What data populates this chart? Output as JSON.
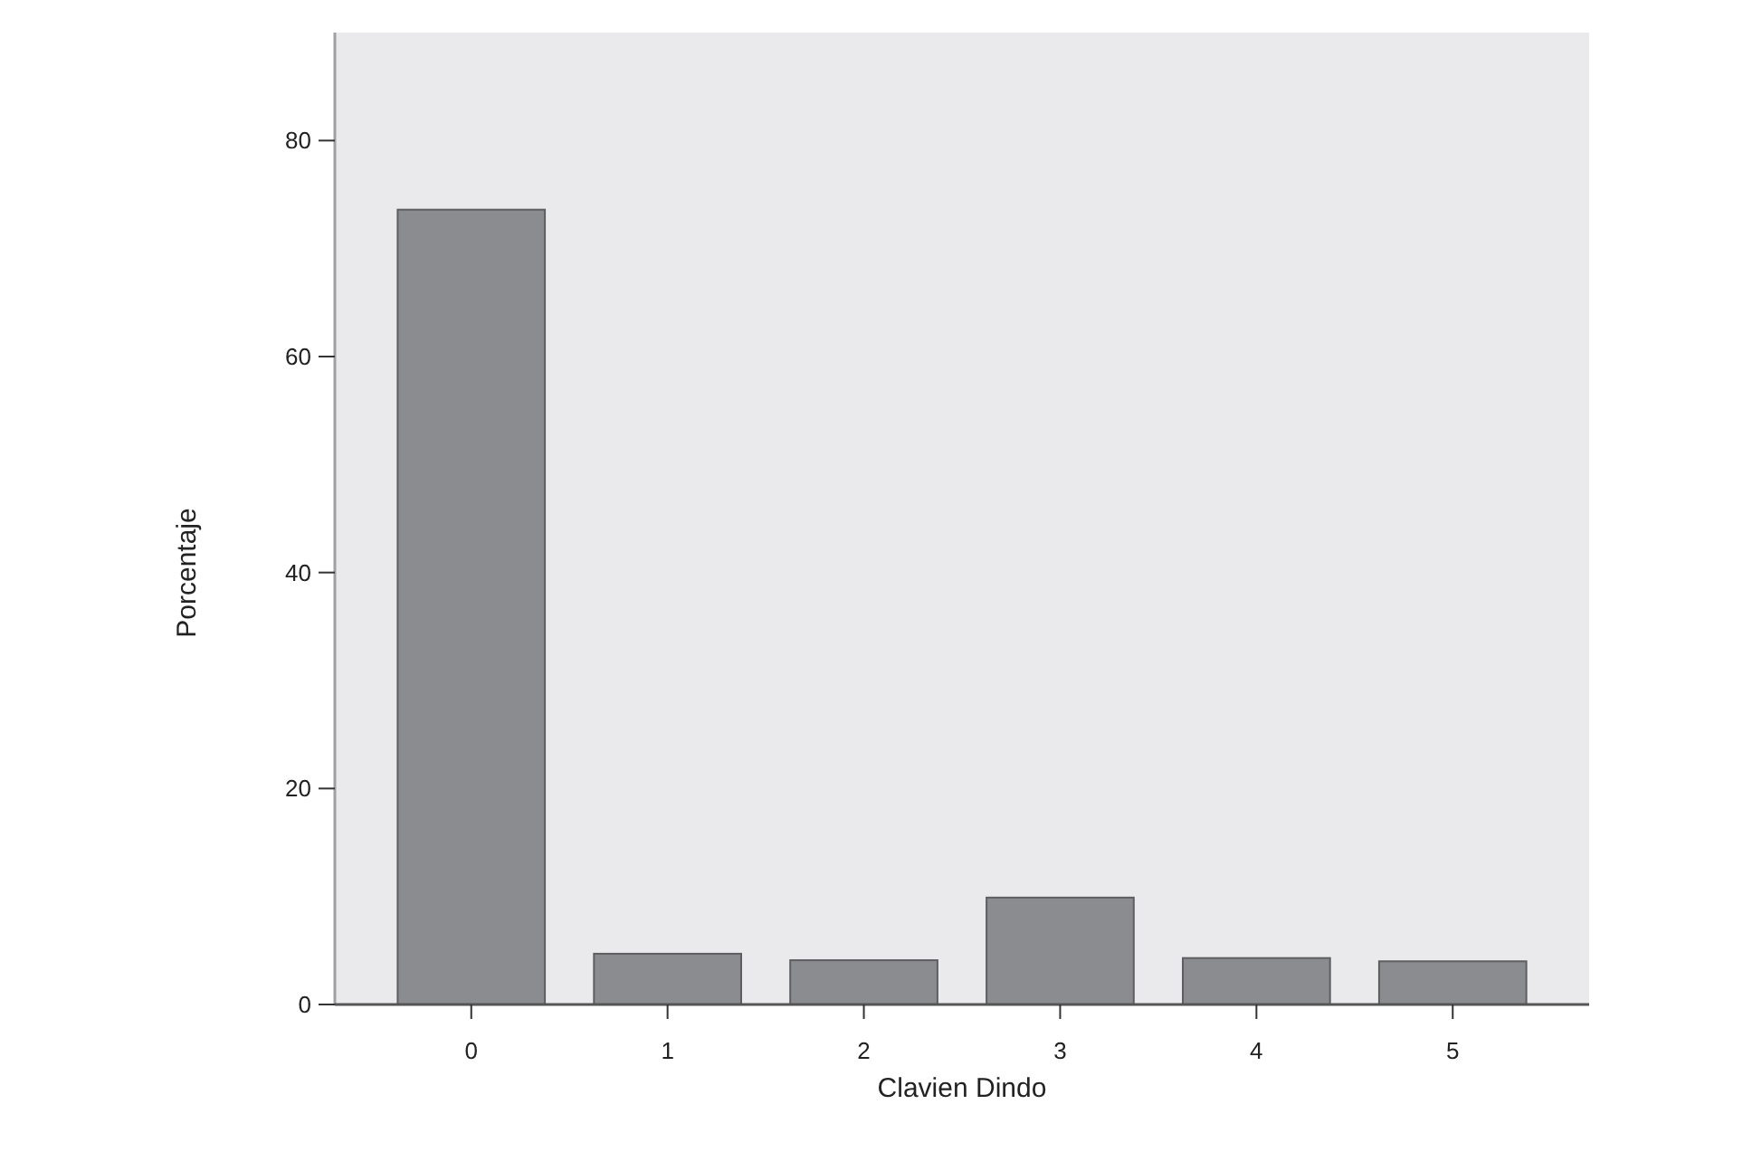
{
  "chart_data": {
    "type": "bar",
    "xlabel": "Clavien Dindo",
    "ylabel": "Porcentaje",
    "categories": [
      "0",
      "1",
      "2",
      "3",
      "4",
      "5"
    ],
    "values": [
      73.6,
      4.7,
      4.1,
      9.9,
      4.3,
      4.0
    ],
    "color": "#8b8c90",
    "ylim": [
      0,
      90
    ],
    "yticks": [
      0,
      20,
      40,
      60,
      80
    ],
    "grid": false
  }
}
